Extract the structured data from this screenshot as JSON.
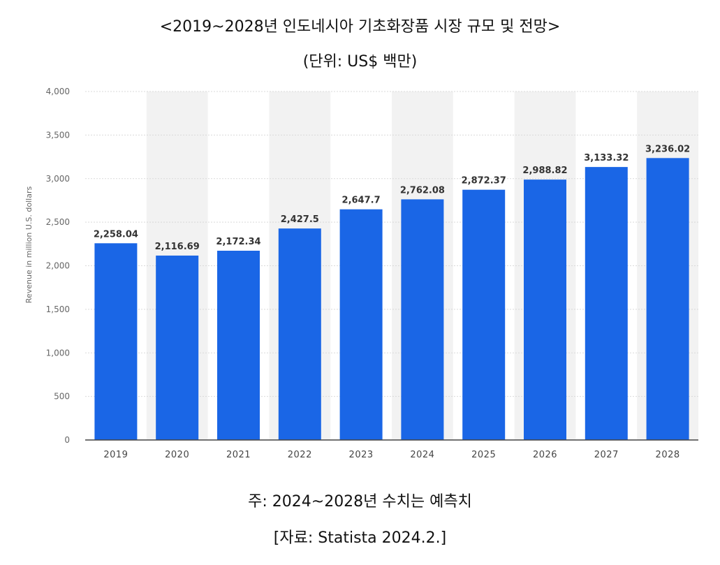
{
  "header": {
    "title": "<2019~2028년 인도네시아 기초화장품 시장 규모 및 전망>",
    "unit": "(단위: US$ 백만)"
  },
  "footer": {
    "note": "주: 2024~2028년 수치는 예측치",
    "source": "[자료: Statista 2024.2.]"
  },
  "colors": {
    "bar": "#1a66e6",
    "shade": "#f2f2f2",
    "grid": "#d9d9d9"
  },
  "chart_data": {
    "type": "bar",
    "categories": [
      "2019",
      "2020",
      "2021",
      "2022",
      "2023",
      "2024",
      "2025",
      "2026",
      "2027",
      "2028"
    ],
    "values": [
      2258.04,
      2116.69,
      2172.34,
      2427.5,
      2647.7,
      2762.08,
      2872.37,
      2988.82,
      3133.32,
      3236.02
    ],
    "value_labels": [
      "2,258.04",
      "2,116.69",
      "2,172.34",
      "2,427.5",
      "2,647.7",
      "2,762.08",
      "2,872.37",
      "2,988.82",
      "3,133.32",
      "3,236.02"
    ],
    "ylabel": "Revenue in million U.S. dollars",
    "ylim": [
      0,
      4000
    ],
    "yticks": [
      "0",
      "500",
      "1,000",
      "1,500",
      "2,000",
      "2,500",
      "3,000",
      "3,500",
      "4,000"
    ],
    "ytick_values": [
      0,
      500,
      1000,
      1500,
      2000,
      2500,
      3000,
      3500,
      4000
    ],
    "grid": true,
    "shaded_alternate_columns": true
  }
}
